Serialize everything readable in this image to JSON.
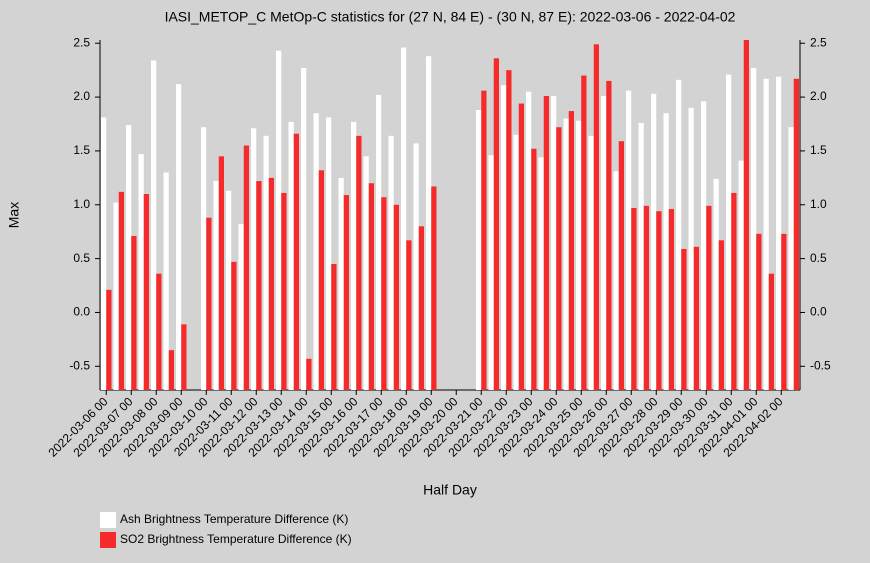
{
  "chart_data": {
    "type": "bar",
    "title": "IASI_METOP_C MetOp-C statistics for (27 N, 84 E) - (30 N, 87 E): 2022-03-06 - 2022-04-02",
    "x_label": "Half Day",
    "y_label": "Max",
    "categories": [
      "2022-03-06 00",
      null,
      "2022-03-07 00",
      null,
      "2022-03-08 00",
      null,
      "2022-03-09 00",
      null,
      "2022-03-10 00",
      null,
      "2022-03-11 00",
      null,
      "2022-03-12 00",
      null,
      "2022-03-13 00",
      null,
      "2022-03-14 00",
      null,
      "2022-03-15 00",
      null,
      "2022-03-16 00",
      null,
      "2022-03-17 00",
      null,
      "2022-03-18 00",
      null,
      "2022-03-19 00",
      null,
      "2022-03-20 00",
      null,
      "2022-03-21 00",
      null,
      "2022-03-22 00",
      null,
      "2022-03-23 00",
      null,
      "2022-03-24 00",
      null,
      "2022-03-25 00",
      null,
      "2022-03-26 00",
      null,
      "2022-03-27 00",
      null,
      "2022-03-28 00",
      null,
      "2022-03-29 00",
      null,
      "2022-03-30 00",
      null,
      "2022-03-31 00",
      null,
      "2022-04-01 00",
      null,
      "2022-04-02 00",
      null
    ],
    "series": [
      {
        "name": "Ash Brightness Temperature Difference (K)",
        "color": "#ffffff",
        "values": [
          1.81,
          1.02,
          1.74,
          1.47,
          2.34,
          1.3,
          2.12,
          null,
          1.72,
          1.22,
          1.13,
          0.82,
          1.71,
          1.64,
          2.43,
          1.77,
          2.27,
          1.85,
          1.81,
          1.25,
          1.77,
          1.45,
          2.02,
          1.64,
          2.46,
          1.57,
          2.38,
          null,
          null,
          null,
          1.88,
          1.46,
          2.11,
          1.65,
          2.05,
          1.44,
          2.01,
          1.8,
          1.78,
          1.64,
          2.01,
          1.31,
          2.06,
          1.76,
          2.03,
          1.85,
          2.16,
          1.9,
          1.96,
          1.24,
          2.21,
          1.41,
          2.27,
          2.17,
          2.19,
          1.72
        ]
      },
      {
        "name": "SO2 Brightness Temperature Difference (K)",
        "color": "#f52a2a",
        "values": [
          0.21,
          1.12,
          0.71,
          1.1,
          0.36,
          -0.35,
          -0.11,
          null,
          0.88,
          1.45,
          0.47,
          1.55,
          1.22,
          1.25,
          1.11,
          1.66,
          -0.43,
          1.32,
          0.45,
          1.09,
          1.64,
          1.2,
          1.07,
          1.0,
          0.67,
          0.8,
          1.17,
          null,
          null,
          null,
          2.06,
          2.36,
          2.25,
          1.94,
          1.52,
          2.01,
          1.72,
          1.87,
          2.2,
          2.49,
          2.15,
          1.59,
          0.97,
          0.99,
          0.94,
          0.96,
          0.59,
          0.61,
          0.99,
          0.67,
          1.11,
          2.53,
          0.73,
          0.36,
          0.73,
          2.17
        ]
      }
    ],
    "ylim": [
      -0.72,
      2.53
    ],
    "yticks": [
      {
        "value": -0.5,
        "label": "-0.5"
      },
      {
        "value": 0,
        "label": "0.0"
      },
      {
        "value": 0.5,
        "label": "0.5"
      },
      {
        "value": 1,
        "label": "1.0"
      },
      {
        "value": 1.5,
        "label": "1.5"
      },
      {
        "value": 2,
        "label": "2.0"
      },
      {
        "value": 2.5,
        "label": "2.5"
      }
    ],
    "background": "#d3d3d3"
  }
}
